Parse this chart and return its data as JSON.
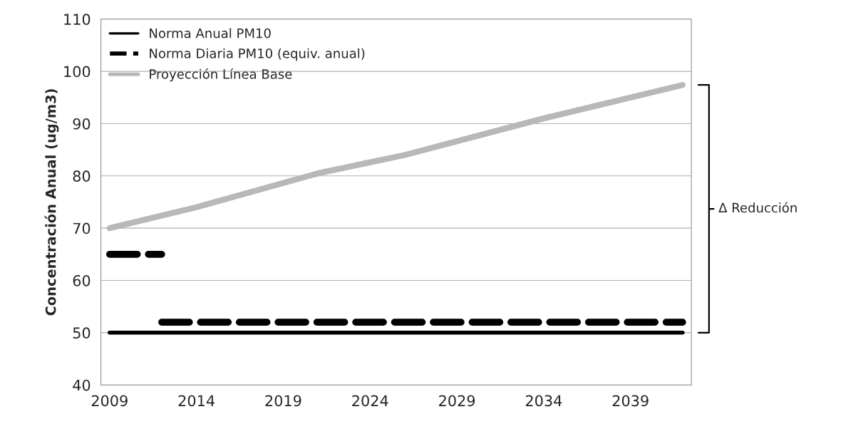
{
  "chart_data": {
    "type": "line",
    "ylabel": "Concentración Anual (ug/m3)",
    "series": [
      {
        "name": "Norma Anual PM10",
        "color": "#000000",
        "line_style": "solid",
        "x": [
          2009,
          2042
        ],
        "values": [
          50,
          50
        ]
      },
      {
        "name": "Norma Diaria PM10 (equiv. anual)",
        "color": "#000000",
        "line_style": "dashed",
        "x": [
          2009,
          2012
        ],
        "values": [
          65,
          65
        ]
      },
      {
        "color": "#000000",
        "line_style": "dashed",
        "x": [
          2012,
          2042
        ],
        "values": [
          52,
          52
        ]
      },
      {
        "name": "Proyección Línea Base",
        "color": "#b8b8b8",
        "line_style": "solid",
        "x": [
          2009,
          2014,
          2021,
          2026,
          2034,
          2042
        ],
        "values": [
          70,
          74,
          80.5,
          84,
          91,
          97.4
        ]
      }
    ],
    "xlim": [
      2008.5,
      2042.5
    ],
    "xticks": [
      2009,
      2014,
      2019,
      2024,
      2029,
      2034,
      2039
    ],
    "ylim": [
      40,
      110
    ],
    "yticks": [
      40,
      50,
      60,
      70,
      80,
      90,
      100,
      110
    ],
    "grid": "y",
    "legend": "top left",
    "marker": "none",
    "annotations": [
      "Δ Reducción"
    ]
  }
}
